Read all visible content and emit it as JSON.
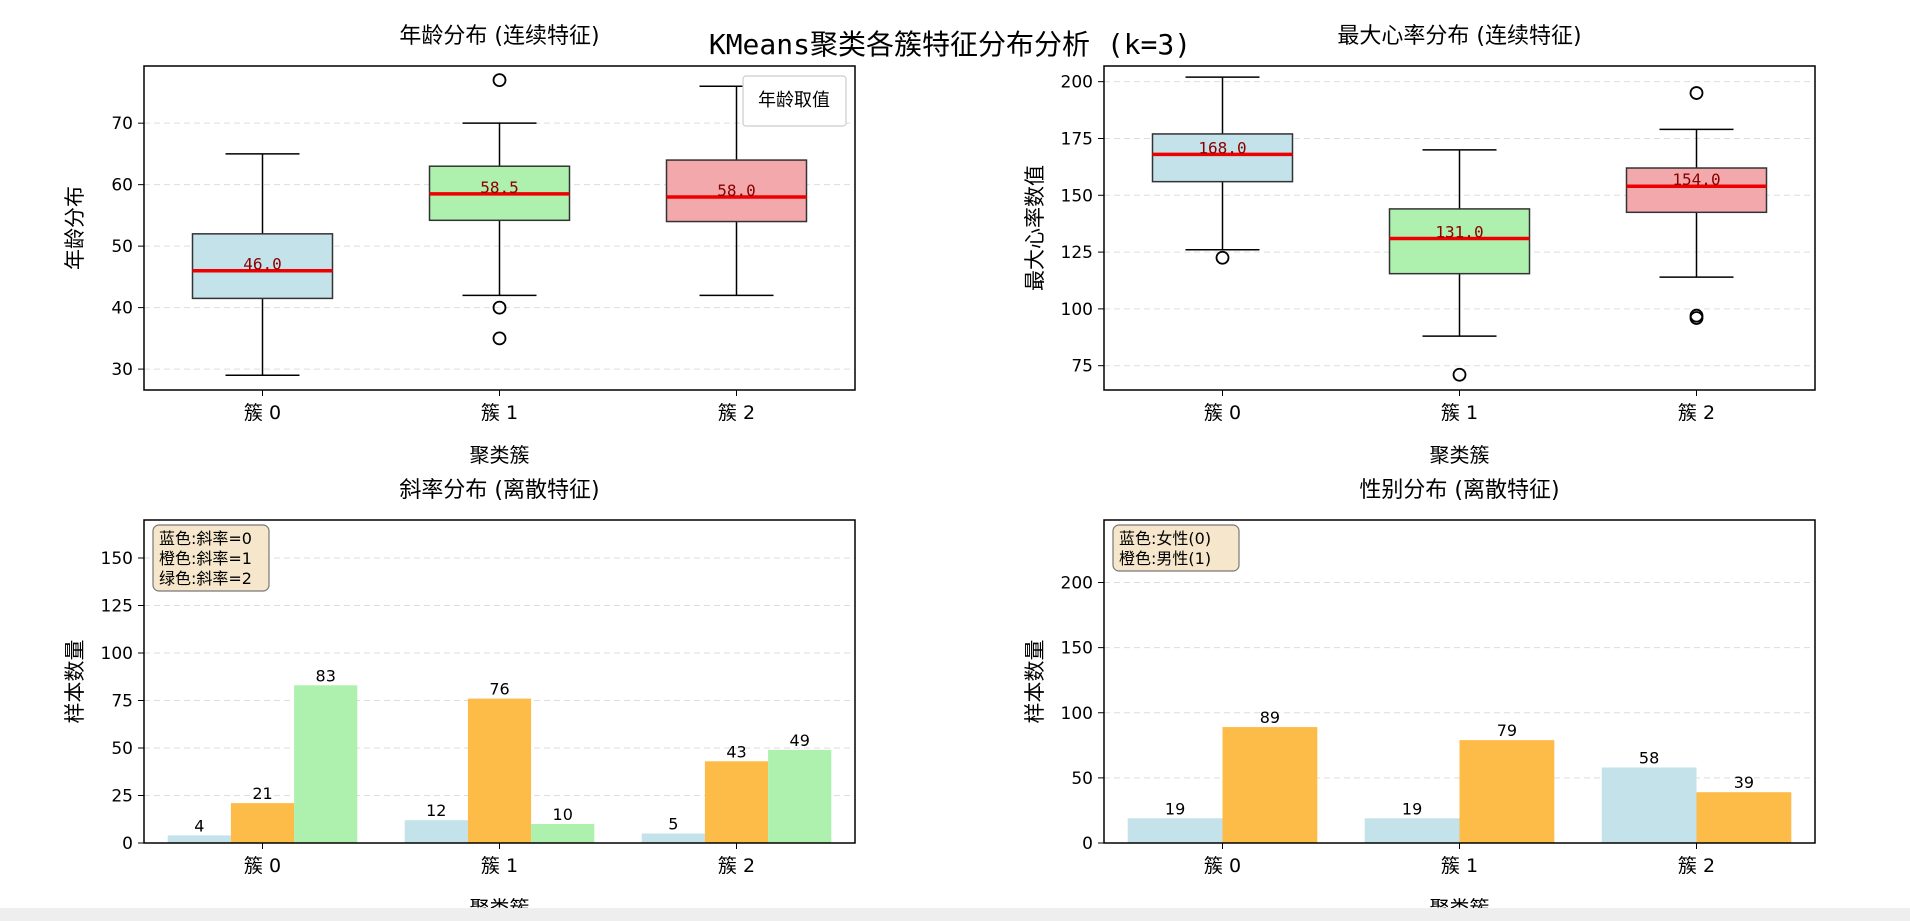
{
  "suptitle": "KMeans聚类各簇特征分布分析 (k=3)",
  "colors": {
    "cluster0": "#c3e2ea",
    "cluster1": "#aef0ae",
    "cluster2": "#f3a9ab",
    "median": "#ee0000",
    "median_text": "#8b0000",
    "orange": "#fdbb47",
    "green": "#aef0ae",
    "blue": "#c3e2ea"
  },
  "chart_data": [
    {
      "id": "age",
      "type": "box",
      "title": "年龄分布 (连续特征)",
      "xlabel": "聚类簇",
      "ylabel": "年龄分布",
      "categories": [
        "簇 0",
        "簇 1",
        "簇 2"
      ],
      "ylim": [
        26.6,
        79.3
      ],
      "yticks": [
        30,
        40,
        50,
        60,
        70
      ],
      "grid": true,
      "legend": {
        "label": "年龄取值",
        "position": "top-right"
      },
      "boxes": [
        {
          "whislo": 29,
          "q1": 41.5,
          "med": 46.0,
          "q3": 52,
          "whishi": 65,
          "fliers": []
        },
        {
          "whislo": 42,
          "q1": 54.2,
          "med": 58.5,
          "q3": 63,
          "whishi": 70,
          "fliers": [
            77,
            40,
            35
          ]
        },
        {
          "whislo": 42,
          "q1": 54,
          "med": 58.0,
          "q3": 64,
          "whishi": 76,
          "fliers": []
        }
      ],
      "median_labels": [
        "46.0",
        "58.5",
        "58.0"
      ]
    },
    {
      "id": "hr",
      "type": "box",
      "title": "最大心率分布 (连续特征)",
      "xlabel": "聚类簇",
      "ylabel": "最大心率数值",
      "categories": [
        "簇 0",
        "簇 1",
        "簇 2"
      ],
      "ylim": [
        64.3,
        206.9
      ],
      "yticks": [
        75,
        100,
        125,
        150,
        175,
        200
      ],
      "grid": true,
      "boxes": [
        {
          "whislo": 126,
          "q1": 156,
          "med": 168.0,
          "q3": 177,
          "whishi": 202,
          "fliers": [
            122.5
          ]
        },
        {
          "whislo": 88,
          "q1": 115.5,
          "med": 131.0,
          "q3": 144,
          "whishi": 170,
          "fliers": [
            71
          ]
        },
        {
          "whislo": 114,
          "q1": 142.5,
          "med": 154.0,
          "q3": 162,
          "whishi": 179,
          "fliers": [
            195,
            97,
            96
          ]
        }
      ],
      "median_labels": [
        "168.0",
        "131.0",
        "154.0"
      ]
    },
    {
      "id": "slope",
      "type": "bar",
      "title": "斜率分布 (离散特征)",
      "xlabel": "聚类簇",
      "ylabel": "样本数量",
      "categories": [
        "簇 0",
        "簇 1",
        "簇 2"
      ],
      "ylim": [
        0,
        170
      ],
      "yticks": [
        0,
        25,
        50,
        75,
        100,
        125,
        150
      ],
      "grid": true,
      "series": [
        {
          "name": "斜率=0",
          "values": [
            4,
            12,
            5
          ]
        },
        {
          "name": "斜率=1",
          "values": [
            21,
            76,
            43
          ]
        },
        {
          "name": "斜率=2",
          "values": [
            83,
            10,
            49
          ]
        }
      ],
      "note_lines": [
        "蓝色:斜率=0",
        "橙色:斜率=1",
        "绿色:斜率=2"
      ]
    },
    {
      "id": "sex",
      "type": "bar",
      "title": "性别分布 (离散特征)",
      "xlabel": "聚类簇",
      "ylabel": "样本数量",
      "categories": [
        "簇 0",
        "簇 1",
        "簇 2"
      ],
      "ylim": [
        0,
        248
      ],
      "yticks": [
        0,
        50,
        100,
        150,
        200
      ],
      "grid": true,
      "series": [
        {
          "name": "女性(0)",
          "values": [
            19,
            19,
            58
          ]
        },
        {
          "name": "男性(1)",
          "values": [
            89,
            79,
            39
          ]
        }
      ],
      "note_lines": [
        "蓝色:女性(0)",
        "橙色:男性(1)"
      ]
    }
  ]
}
